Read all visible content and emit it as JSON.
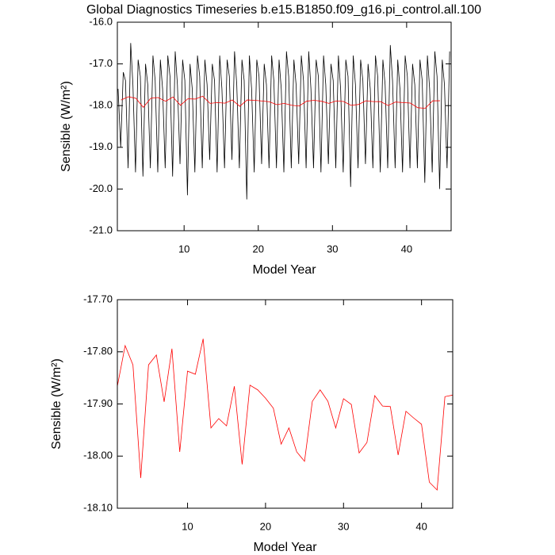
{
  "chart_data": [
    {
      "type": "line",
      "title": "Global Diagnostics Timeseries b.e15.B1850.f09_g16.pi_control.all.100",
      "xlabel": "Model Year",
      "ylabel": "Sensible (W/m²)",
      "xlim": [
        1,
        46
      ],
      "ylim": [
        -21.0,
        -16.0
      ],
      "xticks": [
        10,
        20,
        30,
        40
      ],
      "yticks": [
        {
          "value": -21.0,
          "label": "-21.0"
        },
        {
          "value": -20.0,
          "label": "-20.0"
        },
        {
          "value": -19.0,
          "label": "-19.0"
        },
        {
          "value": -18.0,
          "label": "-18.0"
        },
        {
          "value": -17.0,
          "label": "-17.0"
        },
        {
          "value": -16.0,
          "label": "-16.0"
        }
      ],
      "series": [
        {
          "color": "#000000",
          "x": [
            1.1,
            1.45,
            1.8,
            2.1,
            2.45,
            2.8,
            3.1,
            3.45,
            3.8,
            4.1,
            4.45,
            4.8,
            5.1,
            5.45,
            5.8,
            6.1,
            6.45,
            6.8,
            7.1,
            7.45,
            7.8,
            8.1,
            8.45,
            8.8,
            9.1,
            9.45,
            9.8,
            10.1,
            10.45,
            10.8,
            11.1,
            11.45,
            11.8,
            12.1,
            12.45,
            12.8,
            13.1,
            13.45,
            13.8,
            14.1,
            14.45,
            14.8,
            15.1,
            15.45,
            15.8,
            16.1,
            16.45,
            16.8,
            17.1,
            17.45,
            17.8,
            18.1,
            18.45,
            18.8,
            19.1,
            19.45,
            19.8,
            20.1,
            20.45,
            20.8,
            21.1,
            21.45,
            21.8,
            22.1,
            22.45,
            22.8,
            23.1,
            23.45,
            23.8,
            24.1,
            24.45,
            24.8,
            25.1,
            25.45,
            25.8,
            26.1,
            26.45,
            26.8,
            27.1,
            27.45,
            27.8,
            28.1,
            28.45,
            28.8,
            29.1,
            29.45,
            29.8,
            30.1,
            30.45,
            30.8,
            31.1,
            31.45,
            31.8,
            32.1,
            32.45,
            32.8,
            33.1,
            33.45,
            33.8,
            34.1,
            34.45,
            34.8,
            35.1,
            35.45,
            35.8,
            36.1,
            36.45,
            36.8,
            37.1,
            37.45,
            37.8,
            38.1,
            38.45,
            38.8,
            39.1,
            39.45,
            39.8,
            40.1,
            40.45,
            40.8,
            41.1,
            41.45,
            41.8,
            42.1,
            42.45,
            42.8,
            43.1,
            43.45,
            43.8,
            44.1,
            44.45,
            44.8,
            45.1,
            45.45,
            45.8
          ],
          "values": [
            -17.6,
            -19.0,
            -17.2,
            -17.4,
            -19.5,
            -16.5,
            -17.5,
            -19.6,
            -16.9,
            -17.3,
            -19.7,
            -17.0,
            -17.5,
            -19.5,
            -16.8,
            -17.4,
            -19.6,
            -16.9,
            -17.6,
            -19.5,
            -16.8,
            -17.3,
            -19.7,
            -16.7,
            -17.5,
            -19.4,
            -16.9,
            -17.4,
            -20.15,
            -17.0,
            -17.6,
            -19.6,
            -16.8,
            -17.3,
            -19.5,
            -16.9,
            -17.5,
            -19.3,
            -17.0,
            -17.4,
            -19.6,
            -16.8,
            -17.6,
            -19.5,
            -16.9,
            -17.3,
            -19.3,
            -16.7,
            -17.5,
            -19.5,
            -16.9,
            -17.4,
            -20.25,
            -16.8,
            -17.6,
            -19.6,
            -16.9,
            -17.3,
            -19.4,
            -17.0,
            -17.5,
            -19.5,
            -16.8,
            -17.4,
            -19.5,
            -16.9,
            -17.6,
            -19.6,
            -16.7,
            -17.3,
            -19.5,
            -16.9,
            -17.5,
            -19.4,
            -16.8,
            -17.4,
            -19.5,
            -16.7,
            -17.6,
            -19.5,
            -16.9,
            -17.3,
            -19.6,
            -16.8,
            -17.5,
            -19.4,
            -17.0,
            -17.4,
            -19.5,
            -16.8,
            -17.6,
            -19.6,
            -16.9,
            -17.3,
            -19.95,
            -16.8,
            -17.5,
            -19.5,
            -16.9,
            -17.4,
            -19.4,
            -17.0,
            -17.6,
            -19.5,
            -16.8,
            -17.3,
            -19.6,
            -16.9,
            -17.5,
            -19.5,
            -16.55,
            -17.4,
            -19.5,
            -16.9,
            -17.6,
            -19.6,
            -16.8,
            -17.3,
            -19.5,
            -17.0,
            -17.5,
            -19.5,
            -16.9,
            -17.4,
            -19.85,
            -16.8,
            -17.6,
            -19.6,
            -16.7,
            -17.3,
            -20.0,
            -16.9,
            -17.5,
            -19.5,
            -16.7
          ]
        },
        {
          "color": "#ff0000",
          "x": [
            1.5,
            2.5,
            3.5,
            4.5,
            5.5,
            6.5,
            7.5,
            8.5,
            9.5,
            10.5,
            11.5,
            12.5,
            13.5,
            14.5,
            15.5,
            16.5,
            17.5,
            18.5,
            19.5,
            20.5,
            21.5,
            22.5,
            23.5,
            24.5,
            25.5,
            26.5,
            27.5,
            28.5,
            29.5,
            30.5,
            31.5,
            32.5,
            33.5,
            34.5,
            35.5,
            36.5,
            37.5,
            38.5,
            39.5,
            40.5,
            41.5,
            42.5,
            43.5,
            44.5
          ],
          "values": [
            -17.866,
            -17.788,
            -17.825,
            -18.042,
            -17.825,
            -17.806,
            -17.896,
            -17.794,
            -17.992,
            -17.837,
            -17.843,
            -17.775,
            -17.946,
            -17.928,
            -17.942,
            -17.866,
            -18.016,
            -17.864,
            -17.873,
            -17.889,
            -17.908,
            -17.977,
            -17.946,
            -17.992,
            -18.01,
            -17.895,
            -17.873,
            -17.895,
            -17.946,
            -17.89,
            -17.901,
            -17.994,
            -17.974,
            -17.884,
            -17.904,
            -17.905,
            -17.998,
            -17.914,
            -17.927,
            -17.939,
            -18.05,
            -18.065,
            -17.886,
            -17.883
          ]
        }
      ]
    },
    {
      "type": "line",
      "xlabel": "Model Year",
      "ylabel": "Sensible (W/m²)",
      "xlim": [
        1,
        44
      ],
      "ylim": [
        -18.1,
        -17.7
      ],
      "xticks": [
        10,
        20,
        30,
        40
      ],
      "yticks": [
        {
          "value": -18.1,
          "label": "-18.10"
        },
        {
          "value": -18.0,
          "label": "-18.00"
        },
        {
          "value": -17.9,
          "label": "-17.90"
        },
        {
          "value": -17.8,
          "label": "-17.80"
        },
        {
          "value": -17.7,
          "label": "-17.70"
        }
      ],
      "series": [
        {
          "color": "#ff0000",
          "x": [
            1,
            2,
            3,
            4,
            5,
            6,
            7,
            8,
            9,
            10,
            11,
            12,
            13,
            14,
            15,
            16,
            17,
            18,
            19,
            20,
            21,
            22,
            23,
            24,
            25,
            26,
            27,
            28,
            29,
            30,
            31,
            32,
            33,
            34,
            35,
            36,
            37,
            38,
            39,
            40,
            41,
            42,
            43,
            44
          ],
          "values": [
            -17.866,
            -17.788,
            -17.825,
            -18.042,
            -17.825,
            -17.806,
            -17.896,
            -17.794,
            -17.992,
            -17.837,
            -17.843,
            -17.775,
            -17.946,
            -17.928,
            -17.942,
            -17.866,
            -18.016,
            -17.864,
            -17.873,
            -17.889,
            -17.908,
            -17.977,
            -17.946,
            -17.992,
            -18.01,
            -17.895,
            -17.873,
            -17.895,
            -17.946,
            -17.89,
            -17.901,
            -17.994,
            -17.974,
            -17.884,
            -17.904,
            -17.905,
            -17.998,
            -17.914,
            -17.927,
            -17.939,
            -18.05,
            -18.065,
            -17.886,
            -17.883
          ]
        }
      ]
    }
  ]
}
